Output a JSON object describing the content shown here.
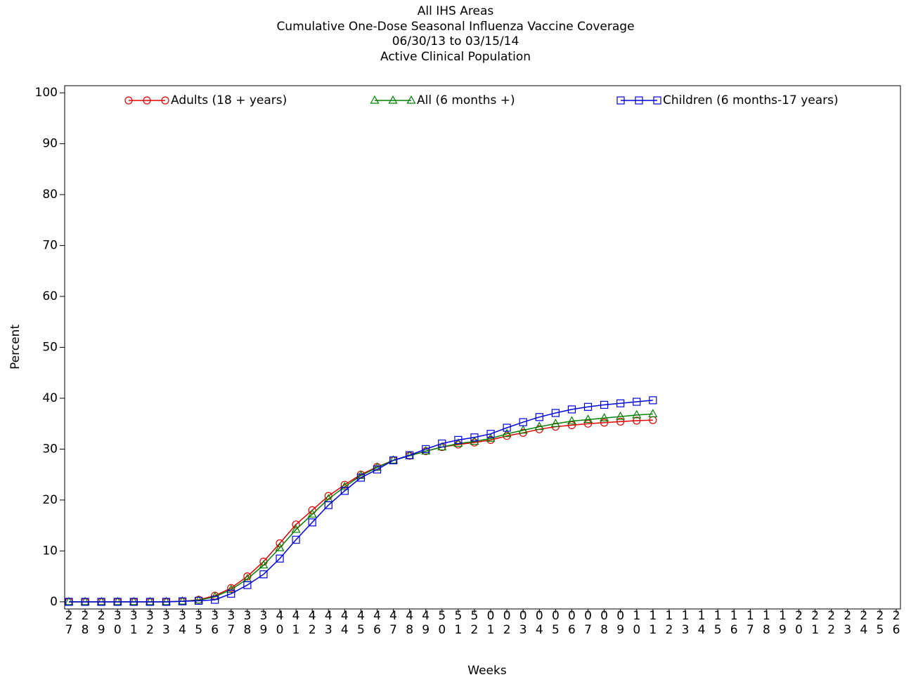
{
  "chart_data": {
    "type": "line",
    "title": "All IHS Areas",
    "subtitle": [
      "Cumulative One-Dose Seasonal Influenza Vaccine Coverage",
      "06/30/13 to 03/15/14",
      "Active Clinical Population"
    ],
    "x_label": "Weeks",
    "y_label": "Percent",
    "categories": [
      "27",
      "28",
      "29",
      "30",
      "31",
      "32",
      "33",
      "34",
      "35",
      "36",
      "37",
      "38",
      "39",
      "40",
      "41",
      "42",
      "43",
      "44",
      "45",
      "46",
      "47",
      "48",
      "49",
      "50",
      "51",
      "52",
      "01",
      "02",
      "03",
      "04",
      "05",
      "06",
      "07",
      "08",
      "09",
      "10",
      "11",
      "12",
      "13",
      "14",
      "15",
      "16",
      "17",
      "18",
      "19",
      "20",
      "21",
      "22",
      "23",
      "24",
      "25",
      "26"
    ],
    "series": [
      {
        "name": "Adults (18 + years)",
        "color": "#e00000",
        "marker": "circle",
        "values": [
          0,
          0,
          0,
          0,
          0,
          0,
          0,
          0.1,
          0.4,
          1.2,
          2.7,
          5.0,
          7.9,
          11.5,
          15.2,
          18.0,
          20.8,
          23.0,
          25.0,
          26.5,
          27.8,
          28.7,
          29.6,
          30.4,
          30.9,
          31.3,
          31.8,
          32.6,
          33.2,
          33.9,
          34.4,
          34.7,
          35.0,
          35.2,
          35.4,
          35.6,
          35.7,
          null,
          null,
          null,
          null,
          null,
          null,
          null,
          null,
          null,
          null,
          null,
          null,
          null,
          null,
          null
        ]
      },
      {
        "name": "All (6 months +)",
        "color": "#008000",
        "marker": "triangle",
        "values": [
          0,
          0,
          0,
          0,
          0,
          0,
          0,
          0.1,
          0.3,
          1.0,
          2.4,
          4.5,
          7.2,
          10.6,
          14.2,
          17.2,
          20.2,
          22.6,
          24.8,
          26.4,
          27.8,
          28.7,
          29.6,
          30.4,
          31.1,
          31.5,
          32.1,
          33.0,
          33.7,
          34.4,
          35.0,
          35.5,
          35.8,
          36.1,
          36.4,
          36.7,
          36.9,
          null,
          null,
          null,
          null,
          null,
          null,
          null,
          null,
          null,
          null,
          null,
          null,
          null,
          null,
          null
        ]
      },
      {
        "name": "Children (6 months-17 years)",
        "color": "#0000e0",
        "marker": "square",
        "values": [
          0,
          0,
          0,
          0,
          0,
          0,
          0,
          0.1,
          0.2,
          0.4,
          1.6,
          3.3,
          5.4,
          8.5,
          12.2,
          15.6,
          19.0,
          21.8,
          24.4,
          26.0,
          27.8,
          28.8,
          30.0,
          31.1,
          31.8,
          32.3,
          33.0,
          34.2,
          35.3,
          36.3,
          37.1,
          37.8,
          38.3,
          38.7,
          39.0,
          39.3,
          39.6,
          null,
          null,
          null,
          null,
          null,
          null,
          null,
          null,
          null,
          null,
          null,
          null,
          null,
          null,
          null
        ]
      }
    ],
    "ylim": [
      -1.4,
      101.4
    ],
    "yticks": [
      0,
      10,
      20,
      30,
      40,
      50,
      60,
      70,
      80,
      90,
      100
    ],
    "legend": "top"
  }
}
